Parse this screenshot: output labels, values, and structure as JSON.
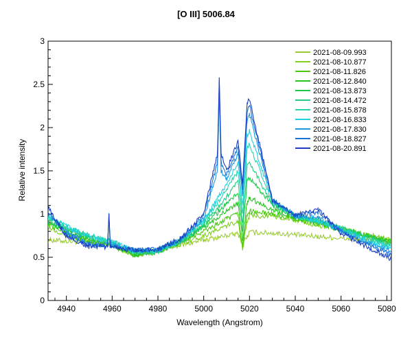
{
  "chart_data": {
    "type": "line",
    "title": "[O III] 5006.84",
    "xlabel": "Wavelength (Angstrom)",
    "ylabel": "Relative intensity",
    "xlim": [
      4932,
      5082
    ],
    "ylim": [
      0,
      3
    ],
    "xticks": [
      4940,
      4960,
      4980,
      5000,
      5020,
      5040,
      5060,
      5080
    ],
    "yticks": [
      0,
      0.5,
      1,
      1.5,
      2,
      2.5,
      3
    ],
    "legend_position": "top-right",
    "series": [
      {
        "name": "2021-08-09.993",
        "color": "#9acd32",
        "points": [
          [
            4932,
            0.7
          ],
          [
            4950,
            0.67
          ],
          [
            4960,
            0.64
          ],
          [
            4970,
            0.56
          ],
          [
            4980,
            0.58
          ],
          [
            4990,
            0.64
          ],
          [
            5000,
            0.7
          ],
          [
            5010,
            0.75
          ],
          [
            5015,
            0.77
          ],
          [
            5017,
            0.66
          ],
          [
            5019,
            0.74
          ],
          [
            5020,
            0.79
          ],
          [
            5030,
            0.78
          ],
          [
            5040,
            0.76
          ],
          [
            5050,
            0.74
          ],
          [
            5060,
            0.72
          ],
          [
            5070,
            0.7
          ],
          [
            5082,
            0.67
          ]
        ]
      },
      {
        "name": "2021-08-10.877",
        "color": "#7fd11b",
        "points": [
          [
            4932,
            0.85
          ],
          [
            4940,
            0.76
          ],
          [
            4950,
            0.67
          ],
          [
            4960,
            0.64
          ],
          [
            4970,
            0.53
          ],
          [
            4980,
            0.57
          ],
          [
            4990,
            0.66
          ],
          [
            5000,
            0.75
          ],
          [
            5010,
            0.86
          ],
          [
            5015,
            0.92
          ],
          [
            5017,
            0.6
          ],
          [
            5019,
            0.92
          ],
          [
            5020,
            0.98
          ],
          [
            5030,
            0.98
          ],
          [
            5040,
            0.93
          ],
          [
            5050,
            0.87
          ],
          [
            5060,
            0.83
          ],
          [
            5070,
            0.77
          ],
          [
            5082,
            0.7
          ]
        ]
      },
      {
        "name": "2021-08-11.826",
        "color": "#4cc714",
        "points": [
          [
            4932,
            0.88
          ],
          [
            4940,
            0.78
          ],
          [
            4950,
            0.68
          ],
          [
            4960,
            0.64
          ],
          [
            4970,
            0.52
          ],
          [
            4980,
            0.57
          ],
          [
            4990,
            0.68
          ],
          [
            5000,
            0.8
          ],
          [
            5010,
            0.94
          ],
          [
            5015,
            1.0
          ],
          [
            5017,
            0.62
          ],
          [
            5019,
            1.0
          ],
          [
            5020,
            1.03
          ],
          [
            5030,
            1.0
          ],
          [
            5040,
            0.94
          ],
          [
            5050,
            0.88
          ],
          [
            5060,
            0.82
          ],
          [
            5070,
            0.76
          ],
          [
            5082,
            0.68
          ]
        ]
      },
      {
        "name": "2021-08-12.840",
        "color": "#26c41e",
        "points": [
          [
            4932,
            0.9
          ],
          [
            4940,
            0.8
          ],
          [
            4950,
            0.7
          ],
          [
            4960,
            0.65
          ],
          [
            4970,
            0.52
          ],
          [
            4980,
            0.56
          ],
          [
            4990,
            0.68
          ],
          [
            5000,
            0.84
          ],
          [
            5010,
            1.04
          ],
          [
            5015,
            1.12
          ],
          [
            5017,
            0.7
          ],
          [
            5019,
            1.14
          ],
          [
            5020,
            1.19
          ],
          [
            5030,
            1.05
          ],
          [
            5040,
            0.96
          ],
          [
            5050,
            0.9
          ],
          [
            5060,
            0.82
          ],
          [
            5070,
            0.75
          ],
          [
            5082,
            0.68
          ]
        ]
      },
      {
        "name": "2021-08-13.873",
        "color": "#1cc84c",
        "points": [
          [
            4932,
            0.92
          ],
          [
            4940,
            0.82
          ],
          [
            4950,
            0.72
          ],
          [
            4960,
            0.66
          ],
          [
            4970,
            0.54
          ],
          [
            4980,
            0.57
          ],
          [
            4990,
            0.68
          ],
          [
            5000,
            0.86
          ],
          [
            5010,
            1.12
          ],
          [
            5015,
            1.25
          ],
          [
            5017,
            0.8
          ],
          [
            5019,
            1.38
          ],
          [
            5020,
            1.42
          ],
          [
            5030,
            1.1
          ],
          [
            5040,
            0.98
          ],
          [
            5050,
            0.91
          ],
          [
            5060,
            0.84
          ],
          [
            5070,
            0.75
          ],
          [
            5082,
            0.66
          ]
        ]
      },
      {
        "name": "2021-08-14.472",
        "color": "#22cc80",
        "points": [
          [
            4932,
            0.94
          ],
          [
            4940,
            0.84
          ],
          [
            4950,
            0.74
          ],
          [
            4960,
            0.68
          ],
          [
            4970,
            0.55
          ],
          [
            4980,
            0.57
          ],
          [
            4990,
            0.68
          ],
          [
            5000,
            0.88
          ],
          [
            5010,
            1.2
          ],
          [
            5015,
            1.38
          ],
          [
            5017,
            0.9
          ],
          [
            5019,
            1.55
          ],
          [
            5020,
            1.6
          ],
          [
            5030,
            1.12
          ],
          [
            5040,
            0.98
          ],
          [
            5050,
            0.92
          ],
          [
            5060,
            0.84
          ],
          [
            5070,
            0.74
          ],
          [
            5082,
            0.64
          ]
        ]
      },
      {
        "name": "2021-08-15.878",
        "color": "#22d4b0",
        "points": [
          [
            4932,
            0.96
          ],
          [
            4940,
            0.85
          ],
          [
            4950,
            0.75
          ],
          [
            4960,
            0.68
          ],
          [
            4970,
            0.56
          ],
          [
            4980,
            0.58
          ],
          [
            4990,
            0.69
          ],
          [
            5000,
            0.91
          ],
          [
            5010,
            1.28
          ],
          [
            5015,
            1.5
          ],
          [
            5017,
            1.0
          ],
          [
            5019,
            1.75
          ],
          [
            5020,
            1.8
          ],
          [
            5030,
            1.14
          ],
          [
            5040,
            0.98
          ],
          [
            5050,
            0.92
          ],
          [
            5060,
            0.83
          ],
          [
            5070,
            0.72
          ],
          [
            5082,
            0.62
          ]
        ]
      },
      {
        "name": "2021-08-16.833",
        "color": "#22d0dc",
        "points": [
          [
            4932,
            0.98
          ],
          [
            4940,
            0.86
          ],
          [
            4950,
            0.74
          ],
          [
            4960,
            0.68
          ],
          [
            4970,
            0.57
          ],
          [
            4980,
            0.58
          ],
          [
            4990,
            0.7
          ],
          [
            5000,
            0.93
          ],
          [
            5010,
            1.34
          ],
          [
            5015,
            1.6
          ],
          [
            5017,
            1.1
          ],
          [
            5019,
            1.92
          ],
          [
            5020,
            1.96
          ],
          [
            5030,
            1.15
          ],
          [
            5040,
            0.98
          ],
          [
            5050,
            0.92
          ],
          [
            5060,
            0.82
          ],
          [
            5070,
            0.7
          ],
          [
            5082,
            0.6
          ]
        ]
      },
      {
        "name": "2021-08-17.830",
        "color": "#1e98dc",
        "points": [
          [
            4932,
            1.0
          ],
          [
            4940,
            0.8
          ],
          [
            4950,
            0.66
          ],
          [
            4958,
            0.65
          ],
          [
            4958.6,
            0.98
          ],
          [
            4959.2,
            0.65
          ],
          [
            4970,
            0.58
          ],
          [
            4980,
            0.59
          ],
          [
            4990,
            0.7
          ],
          [
            5000,
            0.95
          ],
          [
            5006,
            1.5
          ],
          [
            5006.8,
            2.4
          ],
          [
            5007.6,
            1.5
          ],
          [
            5010,
            1.4
          ],
          [
            5015,
            1.7
          ],
          [
            5017,
            1.2
          ],
          [
            5019,
            2.1
          ],
          [
            5020,
            2.15
          ],
          [
            5030,
            1.15
          ],
          [
            5040,
            0.98
          ],
          [
            5050,
            0.96
          ],
          [
            5060,
            0.8
          ],
          [
            5070,
            0.68
          ],
          [
            5082,
            0.57
          ]
        ]
      },
      {
        "name": "2021-08-18.827",
        "color": "#1a6fd6",
        "points": [
          [
            4932,
            1.04
          ],
          [
            4940,
            0.76
          ],
          [
            4950,
            0.64
          ],
          [
            4958,
            0.63
          ],
          [
            4958.6,
            0.99
          ],
          [
            4959.2,
            0.63
          ],
          [
            4970,
            0.58
          ],
          [
            4980,
            0.59
          ],
          [
            4990,
            0.71
          ],
          [
            5000,
            0.98
          ],
          [
            5006,
            1.6
          ],
          [
            5006.8,
            2.55
          ],
          [
            5007.6,
            1.6
          ],
          [
            5010,
            1.46
          ],
          [
            5015,
            1.78
          ],
          [
            5017,
            1.3
          ],
          [
            5019,
            2.2
          ],
          [
            5020,
            2.25
          ],
          [
            5030,
            1.16
          ],
          [
            5040,
            0.98
          ],
          [
            5050,
            1.02
          ],
          [
            5060,
            0.8
          ],
          [
            5070,
            0.66
          ],
          [
            5082,
            0.52
          ]
        ]
      },
      {
        "name": "2021-08-20.891",
        "color": "#1a3fbf",
        "points": [
          [
            4932,
            1.08
          ],
          [
            4940,
            0.74
          ],
          [
            4950,
            0.62
          ],
          [
            4958,
            0.62
          ],
          [
            4958.6,
            1.0
          ],
          [
            4959.2,
            0.62
          ],
          [
            4970,
            0.58
          ],
          [
            4980,
            0.59
          ],
          [
            4990,
            0.72
          ],
          [
            5000,
            1.0
          ],
          [
            5006,
            1.7
          ],
          [
            5006.8,
            2.57
          ],
          [
            5007.6,
            1.7
          ],
          [
            5010,
            1.5
          ],
          [
            5015,
            1.85
          ],
          [
            5017,
            1.35
          ],
          [
            5019,
            2.3
          ],
          [
            5020,
            2.32
          ],
          [
            5030,
            1.16
          ],
          [
            5040,
            0.98
          ],
          [
            5050,
            1.05
          ],
          [
            5060,
            0.78
          ],
          [
            5070,
            0.64
          ],
          [
            5082,
            0.48
          ]
        ]
      }
    ]
  }
}
